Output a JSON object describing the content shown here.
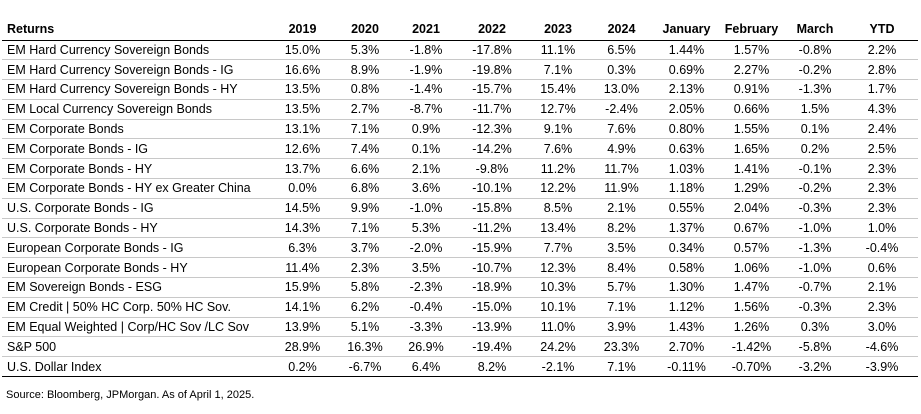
{
  "table": {
    "columns": [
      "Returns",
      "2019",
      "2020",
      "2021",
      "2022",
      "2023",
      "2024",
      "January",
      "February",
      "March",
      "YTD"
    ],
    "rows": [
      [
        "EM Hard Currency Sovereign Bonds",
        "15.0%",
        "5.3%",
        "-1.8%",
        "-17.8%",
        "11.1%",
        "6.5%",
        "1.44%",
        "1.57%",
        "-0.8%",
        "2.2%"
      ],
      [
        "EM Hard Currency Sovereign Bonds - IG",
        "16.6%",
        "8.9%",
        "-1.9%",
        "-19.8%",
        "7.1%",
        "0.3%",
        "0.69%",
        "2.27%",
        "-0.2%",
        "2.8%"
      ],
      [
        "EM Hard Currency Sovereign Bonds - HY",
        "13.5%",
        "0.8%",
        "-1.4%",
        "-15.7%",
        "15.4%",
        "13.0%",
        "2.13%",
        "0.91%",
        "-1.3%",
        "1.7%"
      ],
      [
        "EM Local Currency Sovereign Bonds",
        "13.5%",
        "2.7%",
        "-8.7%",
        "-11.7%",
        "12.7%",
        "-2.4%",
        "2.05%",
        "0.66%",
        "1.5%",
        "4.3%"
      ],
      [
        "EM Corporate Bonds",
        "13.1%",
        "7.1%",
        "0.9%",
        "-12.3%",
        "9.1%",
        "7.6%",
        "0.80%",
        "1.55%",
        "0.1%",
        "2.4%"
      ],
      [
        "EM Corporate Bonds - IG",
        "12.6%",
        "7.4%",
        "0.1%",
        "-14.2%",
        "7.6%",
        "4.9%",
        "0.63%",
        "1.65%",
        "0.2%",
        "2.5%"
      ],
      [
        "EM Corporate Bonds - HY",
        "13.7%",
        "6.6%",
        "2.1%",
        "-9.8%",
        "11.2%",
        "11.7%",
        "1.03%",
        "1.41%",
        "-0.1%",
        "2.3%"
      ],
      [
        "EM Corporate Bonds - HY ex Greater China",
        "0.0%",
        "6.8%",
        "3.6%",
        "-10.1%",
        "12.2%",
        "11.9%",
        "1.18%",
        "1.29%",
        "-0.2%",
        "2.3%"
      ],
      [
        "U.S. Corporate Bonds - IG",
        "14.5%",
        "9.9%",
        "-1.0%",
        "-15.8%",
        "8.5%",
        "2.1%",
        "0.55%",
        "2.04%",
        "-0.3%",
        "2.3%"
      ],
      [
        "U.S. Corporate Bonds - HY",
        "14.3%",
        "7.1%",
        "5.3%",
        "-11.2%",
        "13.4%",
        "8.2%",
        "1.37%",
        "0.67%",
        "-1.0%",
        "1.0%"
      ],
      [
        "European Corporate Bonds - IG",
        "6.3%",
        "3.7%",
        "-2.0%",
        "-15.9%",
        "7.7%",
        "3.5%",
        "0.34%",
        "0.57%",
        "-1.3%",
        "-0.4%"
      ],
      [
        "European Corporate Bonds - HY",
        "11.4%",
        "2.3%",
        "3.5%",
        "-10.7%",
        "12.3%",
        "8.4%",
        "0.58%",
        "1.06%",
        "-1.0%",
        "0.6%"
      ],
      [
        "EM Sovereign Bonds - ESG",
        "15.9%",
        "5.8%",
        "-2.3%",
        "-18.9%",
        "10.3%",
        "5.7%",
        "1.30%",
        "1.47%",
        "-0.7%",
        "2.1%"
      ],
      [
        "EM Credit | 50% HC Corp. 50% HC Sov.",
        "14.1%",
        "6.2%",
        "-0.4%",
        "-15.0%",
        "10.1%",
        "7.1%",
        "1.12%",
        "1.56%",
        "-0.3%",
        "2.3%"
      ],
      [
        "EM Equal Weighted | Corp/HC Sov /LC Sov",
        "13.9%",
        "5.1%",
        "-3.3%",
        "-13.9%",
        "11.0%",
        "3.9%",
        "1.43%",
        "1.26%",
        "0.3%",
        "3.0%"
      ],
      [
        "S&P 500",
        "28.9%",
        "16.3%",
        "26.9%",
        "-19.4%",
        "24.2%",
        "23.3%",
        "2.70%",
        "-1.42%",
        "-5.8%",
        "-4.6%"
      ],
      [
        "U.S. Dollar Index",
        "0.2%",
        "-6.7%",
        "6.4%",
        "8.2%",
        "-2.1%",
        "7.1%",
        "-0.11%",
        "-0.70%",
        "-3.2%",
        "-3.9%"
      ]
    ]
  },
  "source": "Source: Bloomberg, JPMorgan. As of April 1, 2025."
}
